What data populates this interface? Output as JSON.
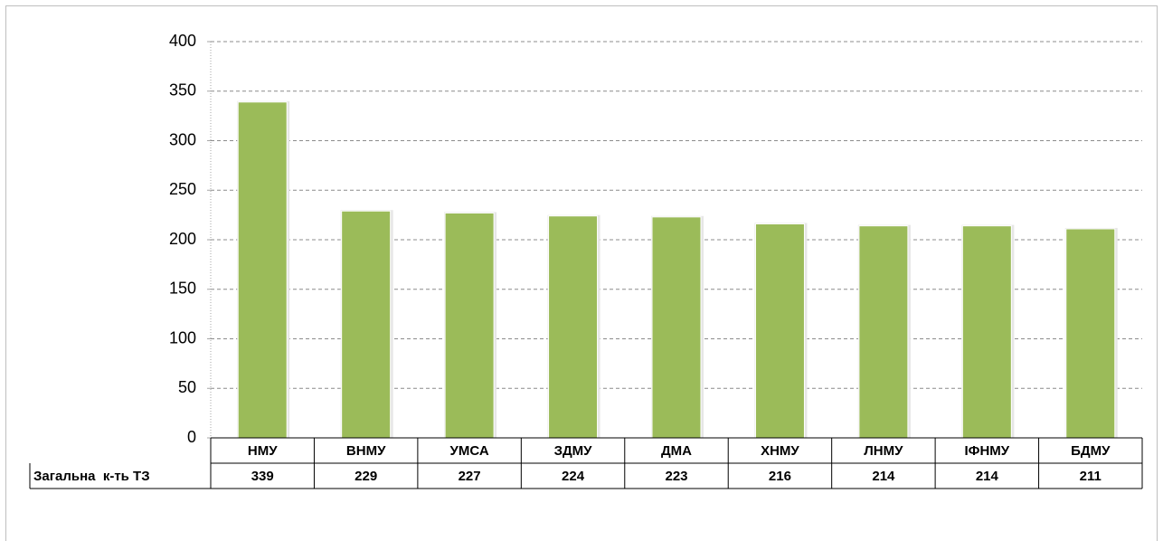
{
  "chart_data": {
    "type": "bar",
    "categories": [
      "НМУ",
      "ВНМУ",
      "УМСА",
      "ЗДМУ",
      "ДМА",
      "ХНМУ",
      "ЛНМУ",
      "ІФНМУ",
      "БДМУ"
    ],
    "series": [
      {
        "name": "Загальна  к-ть ТЗ",
        "color": "#9bbb59",
        "values": [
          339,
          229,
          227,
          224,
          223,
          216,
          214,
          214,
          211
        ]
      }
    ],
    "ylim": [
      0,
      400
    ],
    "yticks": [
      0,
      50,
      100,
      150,
      200,
      250,
      300,
      350,
      400
    ],
    "grid": true
  }
}
